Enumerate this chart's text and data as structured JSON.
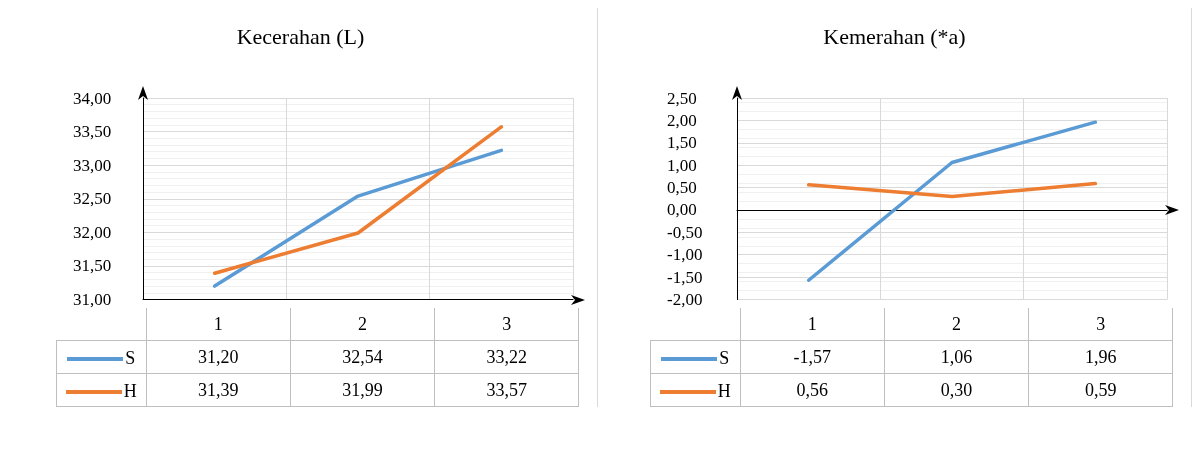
{
  "chart_data": [
    {
      "type": "line",
      "title": "Kecerahan (L)",
      "categories": [
        "1",
        "2",
        "3"
      ],
      "series": [
        {
          "name": "S",
          "color": "#5b9bd5",
          "values": [
            31.2,
            32.54,
            33.22
          ],
          "value_labels": [
            "31,20",
            "32,54",
            "33,22"
          ]
        },
        {
          "name": "H",
          "color": "#ed7d31",
          "values": [
            31.39,
            31.99,
            33.57
          ],
          "value_labels": [
            "31,39",
            "31,99",
            "33,57"
          ]
        }
      ],
      "ylim": [
        31,
        34
      ],
      "yticks": [
        {
          "value": 31,
          "label": "31,00"
        },
        {
          "value": 31.5,
          "label": "31,50"
        },
        {
          "value": 32,
          "label": "32,00"
        },
        {
          "value": 32.5,
          "label": "32,50"
        },
        {
          "value": 33,
          "label": "33,00"
        },
        {
          "value": 33.5,
          "label": "33,50"
        },
        {
          "value": 34,
          "label": "34,00"
        }
      ],
      "grid": true,
      "legend": "bottom",
      "marker": "none",
      "line_style": "solid"
    },
    {
      "type": "line",
      "title": "Kemerahan (*a)",
      "categories": [
        "1",
        "2",
        "3"
      ],
      "series": [
        {
          "name": "S",
          "color": "#5b9bd5",
          "values": [
            -1.57,
            1.06,
            1.96
          ],
          "value_labels": [
            "-1,57",
            "1,06",
            "1,96"
          ]
        },
        {
          "name": "H",
          "color": "#ed7d31",
          "values": [
            0.56,
            0.3,
            0.59
          ],
          "value_labels": [
            "0,56",
            "0,30",
            "0,59"
          ]
        }
      ],
      "ylim": [
        -2,
        2.5
      ],
      "yticks": [
        {
          "value": -2,
          "label": "-2,00"
        },
        {
          "value": -1.5,
          "label": "-1,50"
        },
        {
          "value": -1,
          "label": "-1,00"
        },
        {
          "value": -0.5,
          "label": "-0,50"
        },
        {
          "value": 0,
          "label": "0,00"
        },
        {
          "value": 0.5,
          "label": "0,50"
        },
        {
          "value": 1,
          "label": "1,00"
        },
        {
          "value": 1.5,
          "label": "1,50"
        },
        {
          "value": 2,
          "label": "2,00"
        },
        {
          "value": 2.5,
          "label": "2,50"
        }
      ],
      "grid": true,
      "legend": "bottom",
      "marker": "none",
      "line_style": "solid"
    }
  ]
}
